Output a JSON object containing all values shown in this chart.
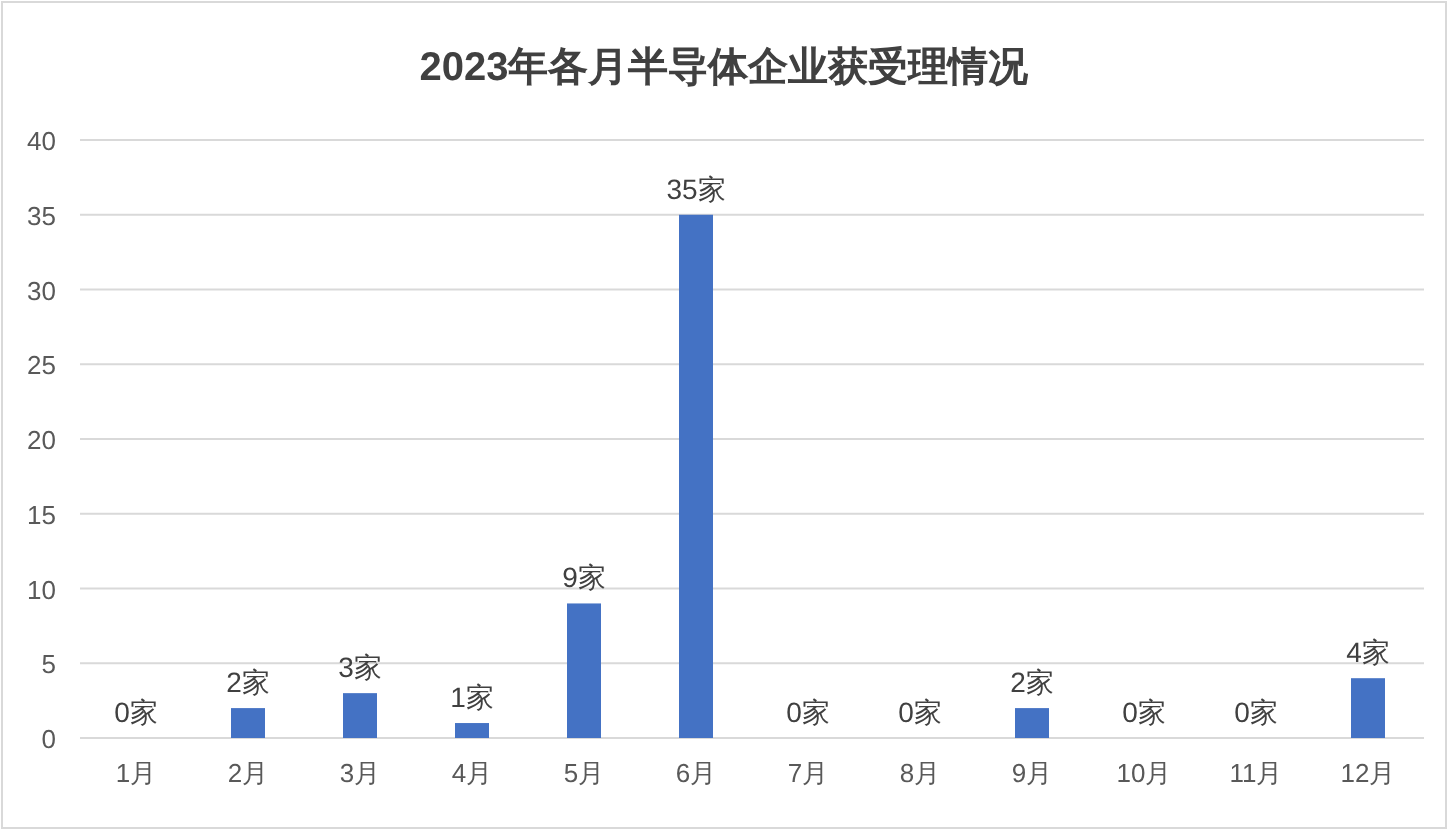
{
  "chart_data": {
    "type": "bar",
    "title": "2023年各月半导体企业获受理情况",
    "categories": [
      "1月",
      "2月",
      "3月",
      "4月",
      "5月",
      "6月",
      "7月",
      "8月",
      "9月",
      "10月",
      "11月",
      "12月"
    ],
    "values": [
      0,
      2,
      3,
      1,
      9,
      35,
      0,
      0,
      2,
      0,
      0,
      4
    ],
    "value_labels": [
      "0家",
      "2家",
      "3家",
      "1家",
      "9家",
      "35家",
      "0家",
      "0家",
      "2家",
      "0家",
      "0家",
      "4家"
    ],
    "color": "#4472c4",
    "ylim": [
      0,
      40
    ],
    "yticks": [
      0,
      5,
      10,
      15,
      20,
      25,
      30,
      35,
      40
    ],
    "grid": "y"
  }
}
